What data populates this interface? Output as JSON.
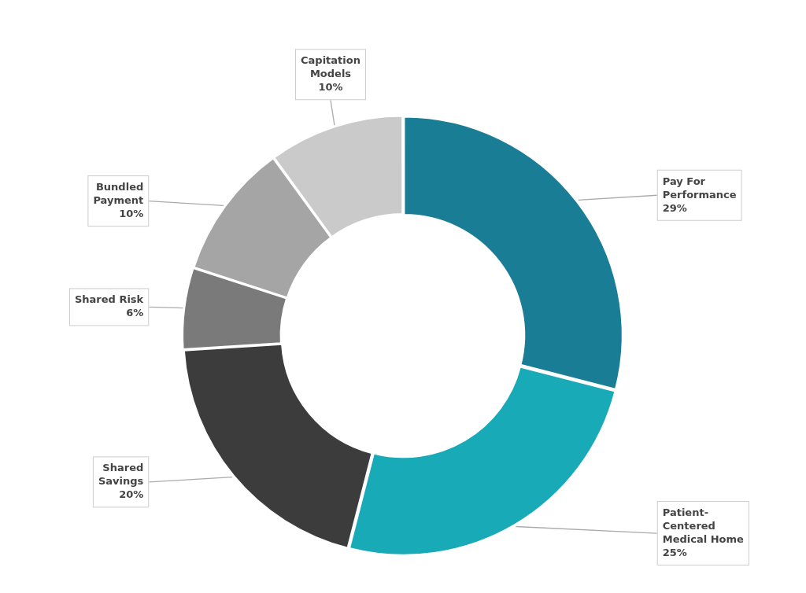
{
  "chart_data": {
    "type": "doughnut",
    "categories": [
      "Pay For\nPerformance",
      "Patient-\nCentered\nMedical Home",
      "Shared\nSavings",
      "Shared Risk",
      "Bundled\nPayment",
      "Capitation\nModels"
    ],
    "values": [
      29,
      25,
      20,
      6,
      10,
      10
    ],
    "value_labels": [
      "29%",
      "25%",
      "20%",
      "6%",
      "10%",
      "10%"
    ],
    "colors": [
      "#1a7d96",
      "#19aab8",
      "#3c3c3c",
      "#7a7a7a",
      "#a5a5a5",
      "#cacaca"
    ],
    "data_labels": true
  }
}
